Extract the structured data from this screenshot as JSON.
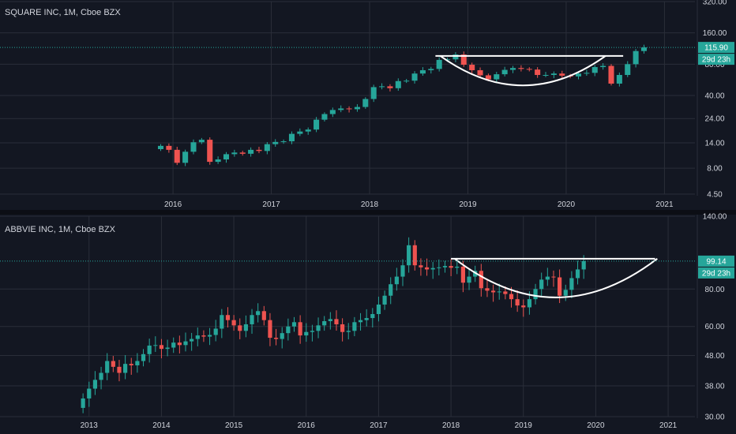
{
  "colors": {
    "background": "#131722",
    "grid": "#2a2e39",
    "text": "#d1d4dc",
    "up": "#26a69a",
    "down": "#ef5350",
    "price_line": "#26a69a",
    "pattern": "#ffffff"
  },
  "chart_data": [
    {
      "type": "candlestick",
      "title": "SQUARE INC, 1M, Cboe BZX",
      "interval": "1M",
      "scale": "log",
      "ylim": [
        4.5,
        320
      ],
      "y_ticks": [
        "320.00",
        "160.00",
        "80.00",
        "40.00",
        "24.00",
        "14.00",
        "8.00",
        "4.50"
      ],
      "x_ticks": [
        "2016",
        "2017",
        "2018",
        "2019",
        "2020",
        "2021"
      ],
      "x_tick_t": [
        2016.0,
        2017.0,
        2018.0,
        2019.0,
        2020.0,
        2021.0
      ],
      "x_range": [
        2014.24,
        2021.31
      ],
      "series_start": 2015.875,
      "last_price": 115.9,
      "last_price_label": "115.90",
      "countdown_label": "29d 23h",
      "grid": true,
      "closes": [
        13.1,
        12.0,
        9.0,
        11.5,
        14.2,
        15.0,
        9.2,
        9.7,
        10.9,
        11.3,
        11.0,
        12.0,
        11.7,
        13.6,
        14.3,
        14.5,
        17.1,
        18.0,
        18.8,
        23.4,
        26.5,
        29.0,
        30.0,
        29.5,
        31.0,
        37.0,
        48.1,
        49.0,
        47.0,
        55.0,
        55.5,
        65.0,
        70.0,
        72.0,
        88.0,
        89.0,
        99.0,
        79.0,
        70.0,
        62.5,
        57.2,
        64.0,
        70.5,
        73.5,
        72.0,
        71.0,
        63.0,
        63.0,
        65.0,
        62.0,
        61.0,
        65.0,
        66.0,
        75.0,
        77.0,
        52.0,
        63.0,
        80.0,
        107.0,
        115.9
      ],
      "pattern": {
        "type": "cup and handle",
        "rim_price": 96.0,
        "rim_start": 2018.67,
        "rim_end": 2020.58,
        "cup_start": 2018.72,
        "cup_end": 2020.4,
        "cup_bottom": 50.0
      }
    },
    {
      "type": "candlestick",
      "title": "ABBVIE INC, 1M, Cboe BZX",
      "interval": "1M",
      "scale": "log",
      "ylim": [
        30,
        140
      ],
      "y_ticks": [
        "140.00",
        "99.14",
        "80.00",
        "60.00",
        "48.00",
        "38.00",
        "30.00"
      ],
      "x_ticks": [
        "2013",
        "2014",
        "2015",
        "2016",
        "2017",
        "2018",
        "2019",
        "2020",
        "2021"
      ],
      "x_tick_t": [
        2013.0,
        2014.0,
        2015.0,
        2016.0,
        2017.0,
        2018.0,
        2019.0,
        2020.0,
        2021.0
      ],
      "x_range": [
        2011.77,
        2021.37
      ],
      "series_start": 2012.917,
      "last_price": 99.14,
      "last_price_label": "99.14",
      "countdown_label": "29d 23h",
      "grid": true,
      "closes": [
        34.5,
        37.2,
        39.8,
        42.0,
        46.0,
        44.0,
        42.0,
        45.0,
        44.5,
        46.0,
        48.5,
        51.8,
        52.0,
        50.5,
        51.0,
        53.0,
        52.0,
        53.5,
        54.5,
        56.0,
        55.5,
        56.2,
        59.0,
        65.5,
        63.0,
        60.5,
        58.0,
        61.0,
        65.5,
        67.5,
        63.0,
        55.0,
        54.5,
        57.0,
        60.0,
        62.0,
        56.0,
        57.5,
        58.0,
        60.5,
        62.5,
        63.5,
        61.0,
        57.5,
        58.0,
        62.0,
        63.0,
        64.0,
        66.0,
        71.0,
        76.0,
        83.0,
        88.0,
        96.0,
        112.0,
        96.0,
        94.5,
        93.0,
        94.0,
        94.5,
        95.5,
        94.2,
        95.0,
        84.0,
        88.0,
        92.0,
        80.5,
        79.0,
        78.0,
        78.5,
        77.0,
        74.0,
        70.5,
        69.5,
        74.0,
        80.0,
        86.0,
        88.0,
        87.5,
        76.0,
        79.5,
        87.0,
        93.0,
        99.14
      ],
      "pattern": {
        "type": "cup and handle",
        "rim_price": 101.0,
        "rim_start": 2018.0,
        "rim_end": 2020.82,
        "cup_start": 2018.05,
        "cup_end": 2020.85,
        "cup_bottom": 75.0
      }
    }
  ]
}
